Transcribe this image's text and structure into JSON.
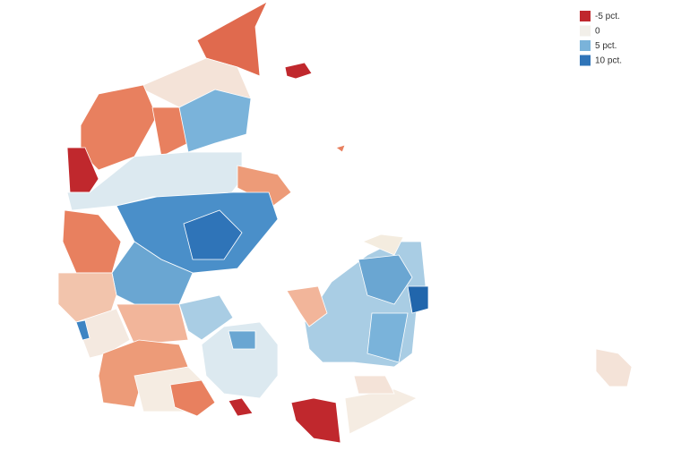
{
  "legend": {
    "items": [
      {
        "label": "-5 pct.",
        "color": "#c0282d"
      },
      {
        "label": "0",
        "color": "#f2efe9"
      },
      {
        "label": "5 pct.",
        "color": "#7ab3da"
      },
      {
        "label": "10 pct.",
        "color": "#2f74b8"
      }
    ]
  }
}
